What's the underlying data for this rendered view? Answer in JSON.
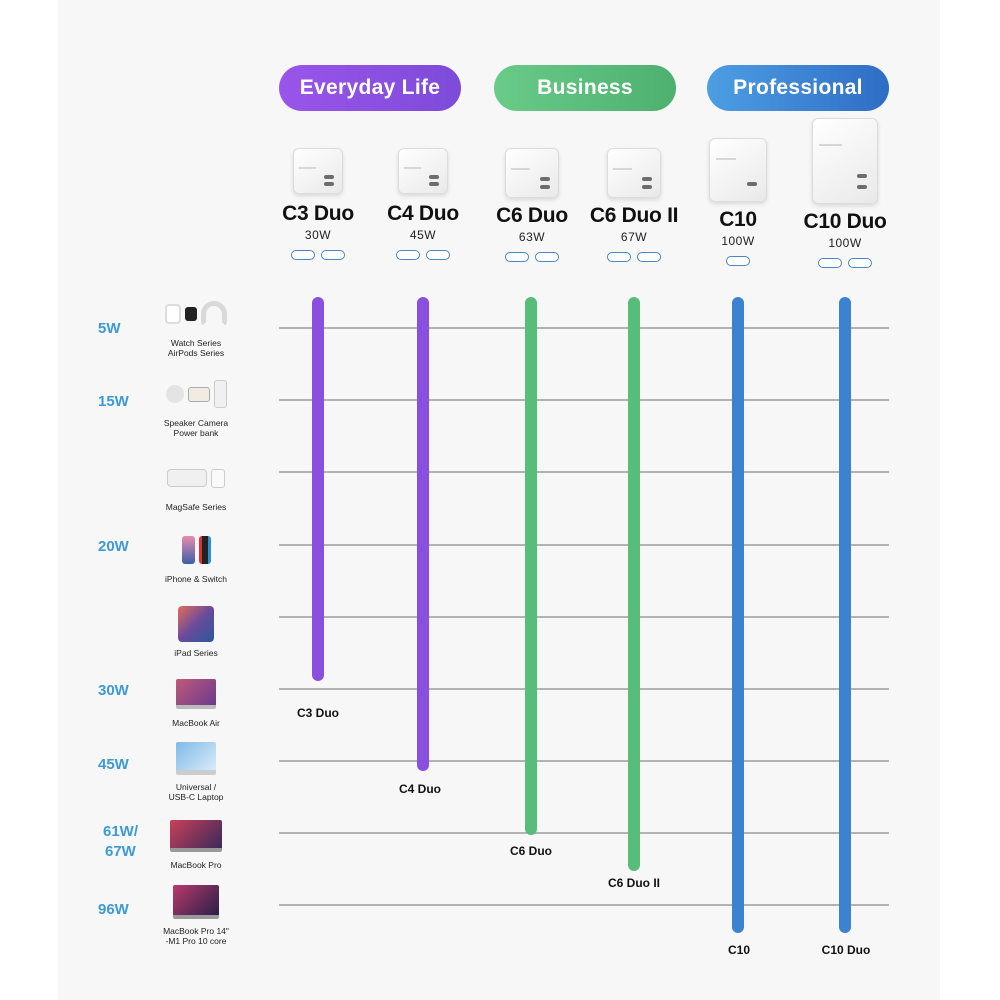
{
  "colors": {
    "purple": "#8a4fdf",
    "green": "#58bd7a",
    "blue": "#3b82d0",
    "watt_label": "#3d9ad6",
    "grid": "#888888"
  },
  "categories": [
    {
      "label": "Everyday Life",
      "color": "#8a4fdf"
    },
    {
      "label": "Business",
      "color": "#58bd7a"
    },
    {
      "label": "Professional",
      "color": "#3b82d0"
    }
  ],
  "products": [
    {
      "name": "C3 Duo",
      "watt": "30W",
      "ports": 2,
      "end_label": "C3 Duo"
    },
    {
      "name": "C4 Duo",
      "watt": "45W",
      "ports": 2,
      "end_label": "C4 Duo"
    },
    {
      "name": "C6 Duo",
      "watt": "63W",
      "ports": 2,
      "end_label": "C6 Duo"
    },
    {
      "name": "C6 Duo II",
      "watt": "67W",
      "ports": 2,
      "end_label": "C6 Duo II"
    },
    {
      "name": "C10",
      "watt": "100W",
      "ports": 1,
      "end_label": "C10"
    },
    {
      "name": "C10 Duo",
      "watt": "100W",
      "ports": 2,
      "end_label": "C10 Duo"
    }
  ],
  "devices": [
    {
      "watt": "5W",
      "name1": "Watch Series",
      "name2": "AirPods Series",
      "icons": [
        "airpods-icon",
        "headphones-icon",
        "watch-icon"
      ]
    },
    {
      "watt": "15W",
      "name1": "Speaker Camera",
      "name2": "Power bank",
      "icons": [
        "speaker-icon",
        "camera-icon",
        "power-bank-icon"
      ]
    },
    {
      "watt": "",
      "name1": "MagSafe Series",
      "name2": "",
      "icons": [
        "magsafe-duo-icon",
        "magsafe-charger-icon",
        "battery-pack-icon"
      ]
    },
    {
      "watt": "20W",
      "name1": "iPhone & Switch",
      "name2": "",
      "icons": [
        "iphone-icon",
        "nintendo-switch-icon"
      ]
    },
    {
      "watt": "",
      "name1": "iPad Series",
      "name2": "",
      "icons": [
        "ipad-icon"
      ]
    },
    {
      "watt": "30W",
      "name1": "MacBook Air",
      "name2": "",
      "icons": [
        "macbook-air-icon"
      ]
    },
    {
      "watt": "45W",
      "name1": "Universal /",
      "name2": "USB-C Laptop",
      "icons": [
        "laptop-icon"
      ]
    },
    {
      "watt1": "61W/",
      "watt": "67W",
      "name1": "MacBook Pro",
      "name2": "",
      "icons": [
        "macbook-pro-icon"
      ]
    },
    {
      "watt": "96W",
      "name1": "MacBook Pro 14\"",
      "name2": "-M1 Pro  10 core",
      "icons": [
        "macbook-pro-14-icon"
      ]
    }
  ],
  "chart_data": {
    "type": "bar",
    "orientation": "vertical-range",
    "levels": [
      "5W",
      "15W",
      "MagSafe Series",
      "20W",
      "iPad Series",
      "30W",
      "45W",
      "61W/67W",
      "96W"
    ],
    "series": [
      {
        "name": "C3 Duo",
        "rating": "30W",
        "group": "Everyday Life",
        "max_level": "30W"
      },
      {
        "name": "C4 Duo",
        "rating": "45W",
        "group": "Everyday Life",
        "max_level": "45W"
      },
      {
        "name": "C6 Duo",
        "rating": "63W",
        "group": "Business",
        "max_level": "61W/67W"
      },
      {
        "name": "C6 Duo II",
        "rating": "67W",
        "group": "Business",
        "max_level": "61W/67W"
      },
      {
        "name": "C10",
        "rating": "100W",
        "group": "Professional",
        "max_level": "96W"
      },
      {
        "name": "C10 Duo",
        "rating": "100W",
        "group": "Professional",
        "max_level": "96W"
      }
    ]
  }
}
